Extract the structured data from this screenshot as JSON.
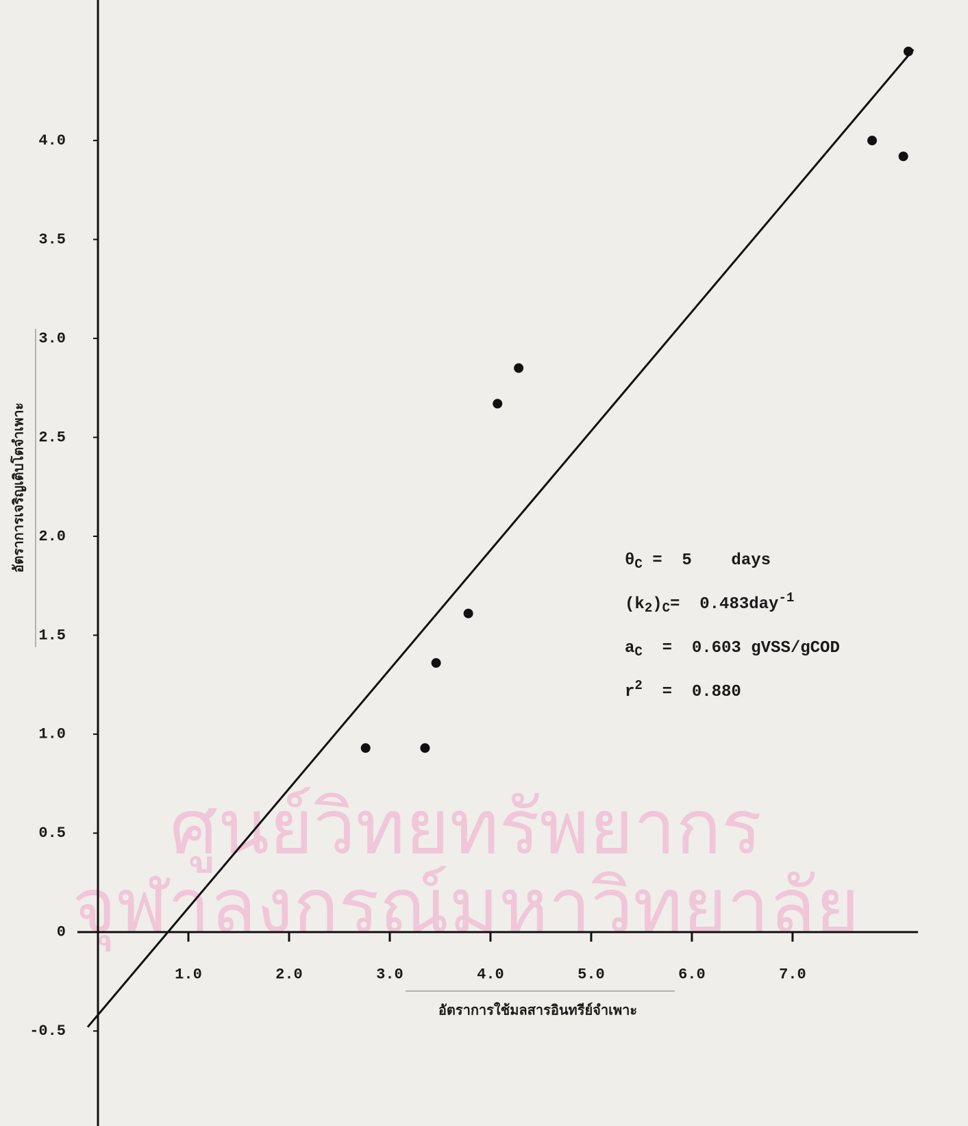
{
  "chart_data": {
    "type": "scatter",
    "x_label": "อัตราการใช้มลสารอินทรีย์จำเพาะ",
    "y_label": "อัตราการเจริญเติบโตจำเพาะ",
    "watermark": [
      "ศูนย์วิทยทรัพยากร",
      "จุฬาลงกรณ์มหาวิทยาลัย"
    ],
    "x": [
      2.76,
      3.35,
      3.46,
      3.78,
      4.07,
      4.28,
      7.79,
      8.1,
      8.15
    ],
    "y": [
      0.93,
      0.93,
      1.36,
      1.61,
      2.67,
      2.85,
      4.0,
      3.92,
      4.45
    ],
    "color": "#111111",
    "fit_line": {
      "x": [
        0,
        8.2
      ],
      "y": [
        -0.48,
        4.46
      ],
      "color": "#111111"
    },
    "xlim": [
      0,
      8.3
    ],
    "ylim": [
      -0.98,
      4.71
    ],
    "xticks": [
      {
        "value": 1,
        "label": "1.0"
      },
      {
        "value": 2,
        "label": "2.0"
      },
      {
        "value": 3,
        "label": "3.0"
      },
      {
        "value": 4,
        "label": "4.0"
      },
      {
        "value": 5,
        "label": "5.0"
      },
      {
        "value": 6,
        "label": "6.0"
      },
      {
        "value": 7,
        "label": "7.0"
      }
    ],
    "yticks": [
      -0.5,
      0,
      0.5,
      {
        "value": 1,
        "label": "1.0"
      },
      1.5,
      {
        "value": 2,
        "label": "2.0"
      },
      2.5,
      {
        "value": 3,
        "label": "3.0"
      },
      3.5,
      {
        "value": 4,
        "label": "4.0"
      }
    ],
    "annotations": [
      [
        {
          "t": "θ"
        },
        {
          "sub": "C"
        },
        {
          "t": " =  5    days"
        }
      ],
      [
        {
          "t": "(k"
        },
        {
          "sub": "2"
        },
        {
          "t": ")"
        },
        {
          "sub": "C"
        },
        {
          "t": "=  0.483day"
        },
        {
          "sup": "-1"
        }
      ],
      [
        {
          "t": "a"
        },
        {
          "sub": "C"
        },
        {
          "t": "  =  0.603 gVSS/gCOD"
        }
      ],
      [
        {
          "t": "r"
        },
        {
          "sup": "2"
        },
        {
          "t": "  =  0.880"
        }
      ]
    ]
  }
}
